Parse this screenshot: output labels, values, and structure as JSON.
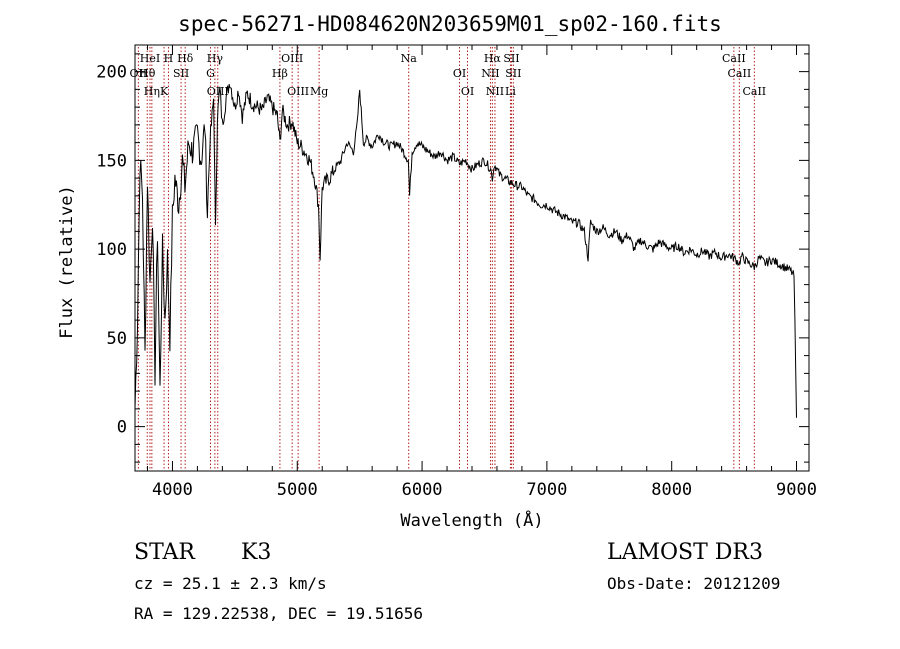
{
  "chart_data": {
    "type": "line",
    "title": "spec-56271-HD084620N203659M01_sp02-160.fits",
    "xlabel": "Wavelength (Å)",
    "ylabel": "Flux (relative)",
    "xlim": [
      3700,
      9100
    ],
    "ylim": [
      -25,
      215
    ],
    "xticks": [
      4000,
      5000,
      6000,
      7000,
      8000,
      9000
    ],
    "xtick_labels": [
      "4000",
      "5000",
      "6000",
      "7000",
      "8000",
      "9000"
    ],
    "yticks": [
      0,
      50,
      100,
      150,
      200
    ],
    "ytick_labels": [
      "0",
      "50",
      "100",
      "150",
      "200"
    ],
    "grid": false,
    "series": [
      {
        "name": "spectrum",
        "x": [
          3700,
          3720,
          3740,
          3760,
          3780,
          3800,
          3820,
          3840,
          3860,
          3880,
          3900,
          3920,
          3940,
          3960,
          3980,
          4000,
          4020,
          4050,
          4080,
          4100,
          4130,
          4160,
          4200,
          4230,
          4260,
          4280,
          4300,
          4330,
          4345,
          4360,
          4380,
          4400,
          4430,
          4460,
          4500,
          4530,
          4560,
          4600,
          4640,
          4680,
          4720,
          4760,
          4800,
          4840,
          4861,
          4880,
          4920,
          4960,
          5000,
          5030,
          5060,
          5100,
          5140,
          5170,
          5183,
          5200,
          5230,
          5260,
          5300,
          5350,
          5400,
          5450,
          5480,
          5500,
          5530,
          5560,
          5600,
          5650,
          5700,
          5750,
          5800,
          5850,
          5890,
          5900,
          5920,
          5960,
          6000,
          6050,
          6100,
          6150,
          6200,
          6250,
          6300,
          6350,
          6400,
          6450,
          6500,
          6550,
          6563,
          6580,
          6620,
          6660,
          6700,
          6750,
          6800,
          6850,
          6900,
          6950,
          7000,
          7050,
          7100,
          7150,
          7200,
          7250,
          7300,
          7330,
          7350,
          7400,
          7450,
          7500,
          7550,
          7600,
          7650,
          7700,
          7750,
          7800,
          7850,
          7900,
          7950,
          8000,
          8050,
          8100,
          8150,
          8200,
          8250,
          8300,
          8350,
          8400,
          8450,
          8500,
          8542,
          8560,
          8600,
          8662,
          8700,
          8750,
          8800,
          8850,
          8900,
          8950,
          8980,
          9000
        ],
        "y": [
          10,
          60,
          150,
          130,
          40,
          140,
          80,
          120,
          30,
          110,
          20,
          100,
          60,
          95,
          50,
          118,
          140,
          125,
          150,
          135,
          160,
          155,
          165,
          150,
          170,
          120,
          160,
          185,
          110,
          175,
          190,
          170,
          185,
          195,
          180,
          190,
          175,
          188,
          182,
          180,
          178,
          185,
          180,
          175,
          160,
          178,
          170,
          172,
          160,
          158,
          155,
          150,
          140,
          125,
          95,
          135,
          138,
          140,
          145,
          150,
          160,
          155,
          170,
          190,
          160,
          162,
          158,
          165,
          160,
          158,
          160,
          155,
          150,
          130,
          155,
          160,
          158,
          155,
          152,
          155,
          150,
          152,
          148,
          150,
          145,
          148,
          150,
          145,
          140,
          148,
          142,
          140,
          138,
          136,
          135,
          130,
          128,
          125,
          125,
          122,
          120,
          118,
          115,
          115,
          110,
          95,
          115,
          110,
          112,
          108,
          110,
          105,
          108,
          100,
          105,
          102,
          100,
          104,
          102,
          100,
          102,
          98,
          100,
          97,
          99,
          96,
          98,
          95,
          97,
          95,
          92,
          96,
          93,
          90,
          95,
          92,
          94,
          92,
          90,
          88,
          85,
          5
        ]
      }
    ],
    "lines_bottom_row": [
      {
        "label": "HeI",
        "x": 3820
      },
      {
        "label": "Hθ",
        "x": 3798
      },
      {
        "label": "K",
        "x": 3933
      },
      {
        "label": "Hδ",
        "x": 4102
      },
      {
        "label": "OII",
        "x": 3727
      },
      {
        "label": "Hη",
        "x": 3835
      },
      {
        "label": "H",
        "x": 3968
      },
      {
        "label": "SII",
        "x": 4069
      },
      {
        "label": "OIII",
        "x": 4363
      },
      {
        "label": "Hγ",
        "x": 4340
      },
      {
        "label": "G",
        "x": 4305
      },
      {
        "label": "OIII",
        "x": 5007
      },
      {
        "label": "OIII",
        "x": 4959
      },
      {
        "label": "Hβ",
        "x": 4861
      },
      {
        "label": "Mg",
        "x": 5175
      },
      {
        "label": "Na",
        "x": 5893
      },
      {
        "label": "OI",
        "x": 6300
      },
      {
        "label": "OI",
        "x": 6364
      },
      {
        "label": "Hα",
        "x": 6563
      },
      {
        "label": "NII",
        "x": 6548
      },
      {
        "label": "NII",
        "x": 6584
      },
      {
        "label": "SII",
        "x": 6716
      },
      {
        "label": "SII",
        "x": 6731
      },
      {
        "label": "Li",
        "x": 6708
      },
      {
        "label": "CaII",
        "x": 8498
      },
      {
        "label": "CaII",
        "x": 8542
      },
      {
        "label": "CaII",
        "x": 8662
      }
    ]
  },
  "info": {
    "class_label": "STAR",
    "subclass": "K3",
    "cz": "cz = 25.1 ± 2.3 km/s",
    "radec": "RA = 129.22538, DEC =  19.51656",
    "survey": "LAMOST DR3",
    "obs_date": "Obs-Date: 20121209"
  },
  "colors": {
    "axis": "#000000",
    "spectrum": "#000000",
    "line_marker": "#b22222"
  }
}
